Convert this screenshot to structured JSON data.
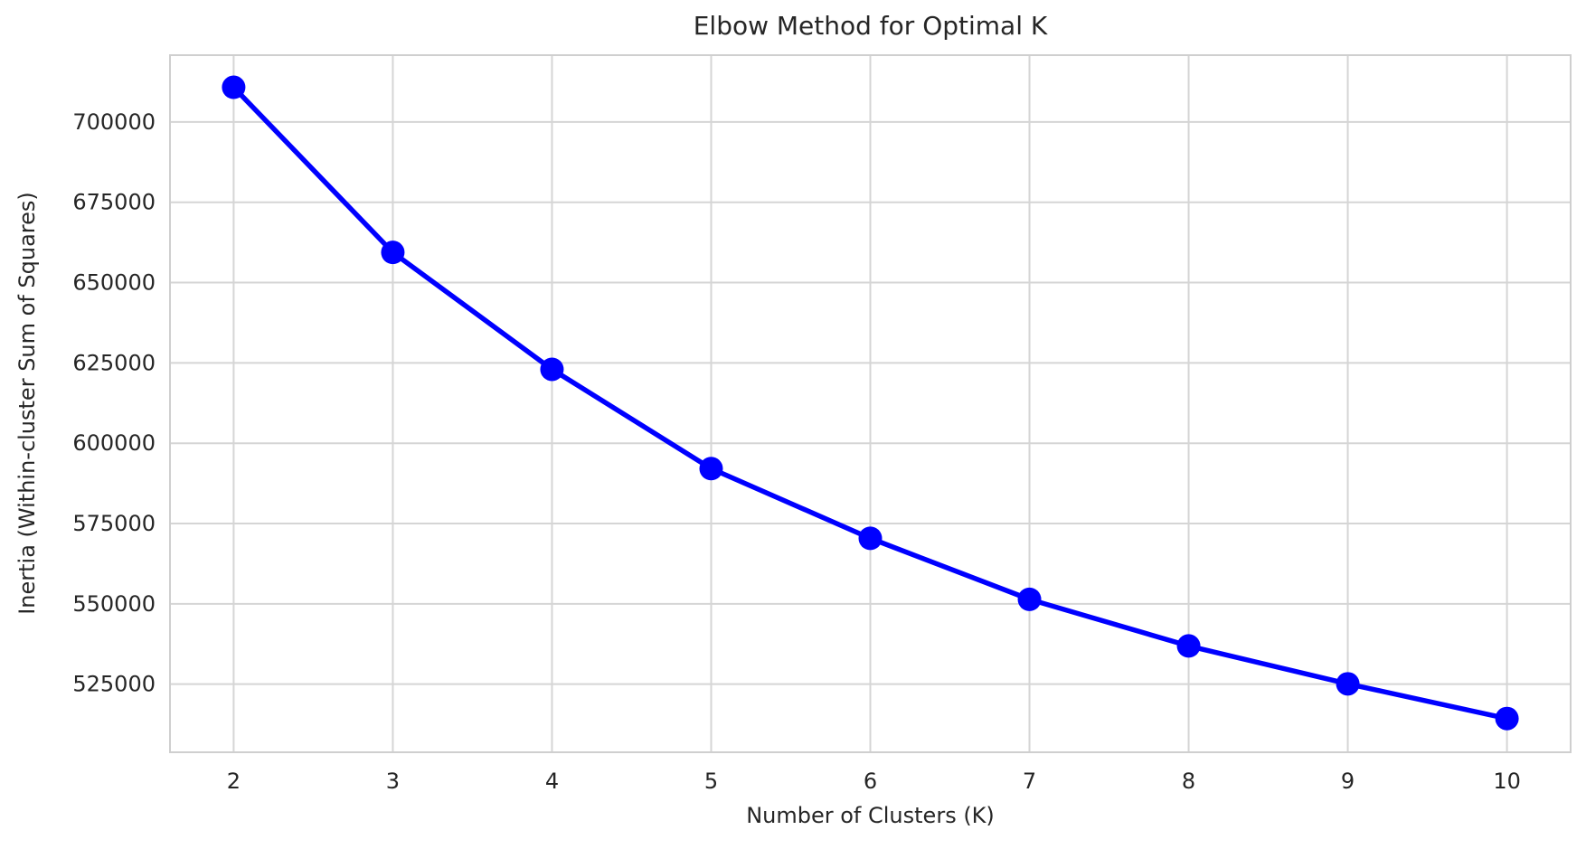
{
  "chart_data": {
    "type": "line",
    "title": "Elbow Method for Optimal K",
    "xlabel": "Number of Clusters (K)",
    "ylabel": "Inertia (Within-cluster Sum of Squares)",
    "x": [
      2,
      3,
      4,
      5,
      6,
      7,
      8,
      9,
      10
    ],
    "series": [
      {
        "name": "Inertia",
        "values": [
          710800,
          659400,
          623000,
          592100,
          570400,
          551400,
          536900,
          525100,
          514300
        ]
      }
    ],
    "x_ticks": [
      "2",
      "3",
      "4",
      "5",
      "6",
      "7",
      "8",
      "9",
      "10"
    ],
    "y_ticks": [
      "525000",
      "550000",
      "575000",
      "600000",
      "625000",
      "650000",
      "675000",
      "700000"
    ],
    "y_tick_values": [
      525000,
      550000,
      575000,
      600000,
      625000,
      650000,
      675000,
      700000
    ],
    "xlim": [
      1.6,
      10.4
    ],
    "ylim": [
      503800,
      720800
    ],
    "grid": true,
    "legend": false,
    "colors": {
      "line": "#0000ff",
      "marker": "#0000ff",
      "grid": "#d5d5d5",
      "spine": "#cfcfcf",
      "text": "#262626",
      "background": "#ffffff"
    }
  }
}
